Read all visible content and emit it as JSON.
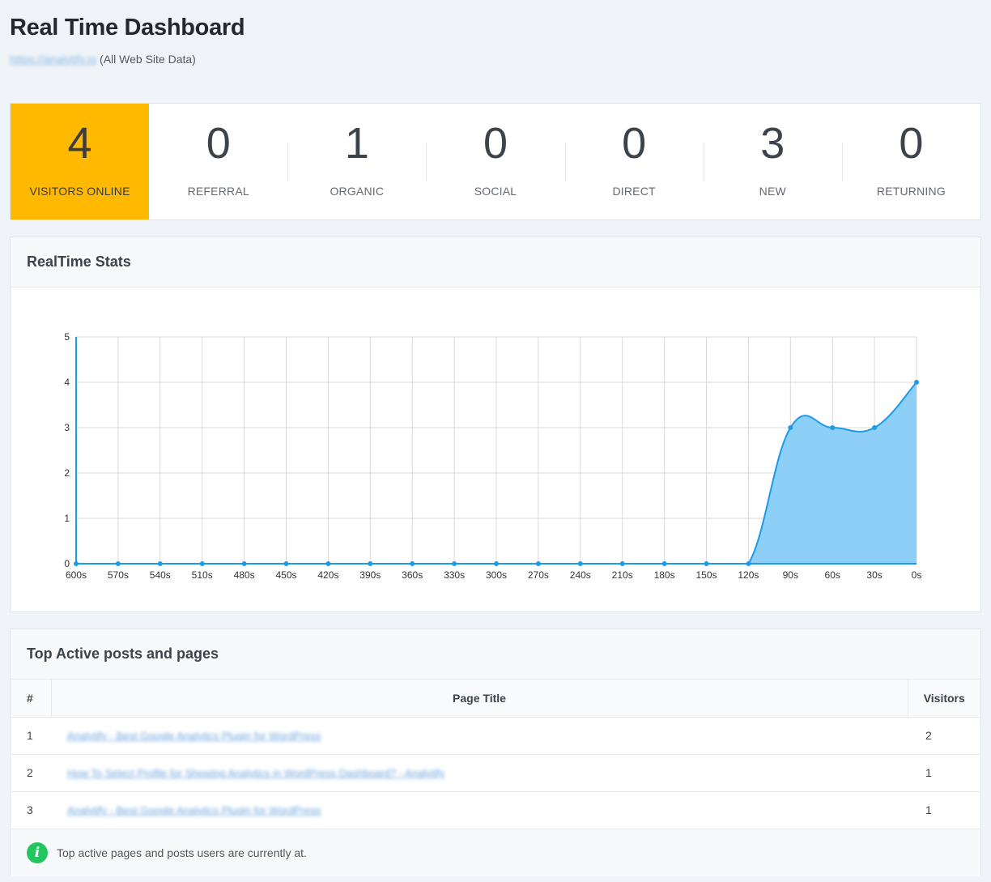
{
  "header": {
    "title": "Real Time Dashboard",
    "site_url": "https://analytify.io",
    "site_note": "(All Web Site Data)"
  },
  "stats": [
    {
      "value": "4",
      "label": "VISITORS ONLINE"
    },
    {
      "value": "0",
      "label": "REFERRAL"
    },
    {
      "value": "1",
      "label": "ORGANIC"
    },
    {
      "value": "0",
      "label": "SOCIAL"
    },
    {
      "value": "0",
      "label": "DIRECT"
    },
    {
      "value": "3",
      "label": "NEW"
    },
    {
      "value": "0",
      "label": "RETURNING"
    }
  ],
  "colors": {
    "highlight": "#ffb900",
    "line": "#1e9be8",
    "area": "#8dcff7",
    "info_icon": "#22c55e"
  },
  "realtime": {
    "title": "RealTime Stats"
  },
  "chart_data": {
    "type": "area",
    "title": "",
    "xlabel": "",
    "ylabel": "",
    "categories": [
      "600s",
      "570s",
      "540s",
      "510s",
      "480s",
      "450s",
      "420s",
      "390s",
      "360s",
      "330s",
      "300s",
      "270s",
      "240s",
      "210s",
      "180s",
      "150s",
      "120s",
      "90s",
      "60s",
      "30s",
      "0s"
    ],
    "values": [
      0,
      0,
      0,
      0,
      0,
      0,
      0,
      0,
      0,
      0,
      0,
      0,
      0,
      0,
      0,
      0,
      0,
      3,
      3,
      3,
      4
    ],
    "ylim": [
      0,
      5
    ],
    "yticks": [
      0,
      1,
      2,
      3,
      4,
      5
    ],
    "grid": true,
    "legend": "none"
  },
  "top_pages": {
    "title": "Top Active posts and pages",
    "columns": {
      "num": "#",
      "title": "Page Title",
      "visitors": "Visitors"
    },
    "rows": [
      {
        "num": "1",
        "title": "Analytify - Best Google Analytics Plugin for WordPress",
        "visitors": "2"
      },
      {
        "num": "2",
        "title": "How To Select Profile for Showing Analytics in WordPress Dashboard? - Analytify",
        "visitors": "1"
      },
      {
        "num": "3",
        "title": "Analytify - Best Google Analytics Plugin for WordPress",
        "visitors": "1"
      }
    ],
    "footer_note": "Top active pages and posts users are currently at.",
    "info_icon": "i"
  }
}
